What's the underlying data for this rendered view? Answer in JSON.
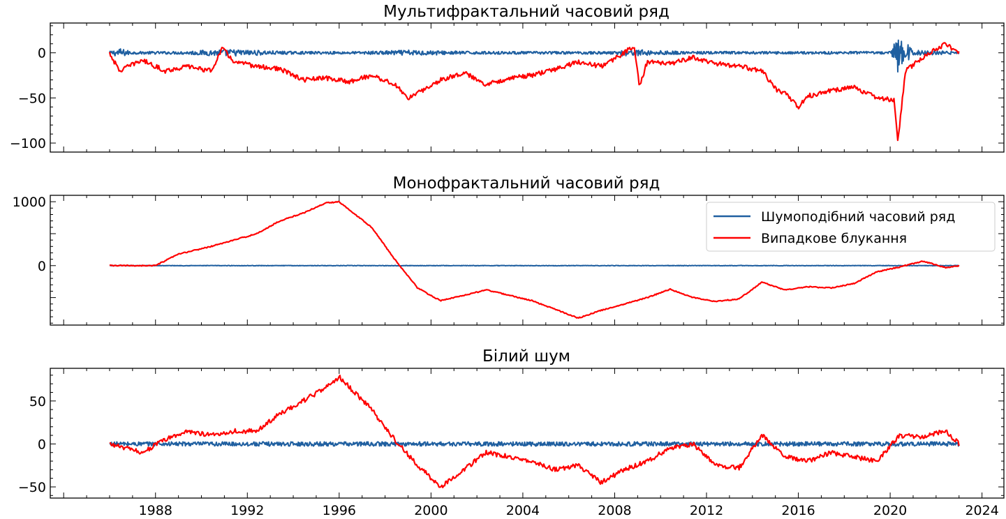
{
  "colors": {
    "noise": "#1f5fa0",
    "walk": "#ff0000",
    "axis": "#000000",
    "background": "#ffffff"
  },
  "legend": {
    "placement": "top-right of middle panel",
    "entries": [
      "Шумоподібний часовий ряд",
      "Випадкове блукання"
    ]
  },
  "chart_data": [
    {
      "type": "line",
      "title": "Мультифрактальний часовий ряд",
      "xlabel": "",
      "ylabel": "",
      "x_type": "date",
      "xlim": [
        "1983-06-01",
        "2024-12-15"
      ],
      "ylim": [
        -110,
        33
      ],
      "y_ticks": [
        0,
        -50,
        -100
      ],
      "y_tick_labels": [
        "0",
        "−50",
        "−100"
      ],
      "x_tick_labels_shown": false,
      "series": [
        {
          "name": "Шумоподібний часовий ряд",
          "style": "noise",
          "x": [
            "1986-01-01",
            "1986-06-01",
            "1987-01-01",
            "1989-01-01",
            "1991-01-01",
            "1994-01-01",
            "1997-01-01",
            "1999-01-01",
            "2002-01-01",
            "2005-01-01",
            "2008-01-01",
            "2008-06-01",
            "2011-01-01",
            "2014-01-01",
            "2017-01-01",
            "2020-01-01",
            "2020-05-01",
            "2021-01-01",
            "2023-01-01"
          ],
          "y": [
            0,
            0,
            0,
            0,
            0,
            0,
            0,
            0,
            0,
            0,
            0,
            0,
            0,
            0,
            0,
            0,
            0,
            0,
            0
          ],
          "amplitude": [
            1.5,
            5,
            1.5,
            1.5,
            4,
            1.5,
            1.5,
            3,
            1.5,
            1.5,
            1.5,
            4,
            1.5,
            1.5,
            1.5,
            1.5,
            22,
            3,
            1.5
          ]
        },
        {
          "name": "Випадкове блукання",
          "style": "walk",
          "x": [
            "1986-01-01",
            "1986-06-01",
            "1987-06-01",
            "1988-06-01",
            "1989-06-01",
            "1990-06-01",
            "1990-12-01",
            "1991-06-01",
            "1992-06-01",
            "1993-06-01",
            "1994-06-01",
            "1995-06-01",
            "1996-06-01",
            "1997-06-01",
            "1998-06-01",
            "1999-01-01",
            "1999-06-01",
            "2000-06-01",
            "2001-06-01",
            "2002-06-01",
            "2003-06-01",
            "2004-06-01",
            "2005-06-01",
            "2006-06-01",
            "2007-06-01",
            "2008-06-01",
            "2008-11-01",
            "2009-02-01",
            "2009-06-01",
            "2010-06-01",
            "2011-06-01",
            "2012-06-01",
            "2013-06-01",
            "2014-06-01",
            "2015-01-01",
            "2015-06-01",
            "2016-01-01",
            "2016-06-01",
            "2017-06-01",
            "2018-06-01",
            "2019-06-01",
            "2020-03-01",
            "2020-05-01",
            "2020-09-01",
            "2021-06-01",
            "2022-06-01",
            "2023-01-01"
          ],
          "y": [
            0,
            -20,
            -8,
            -20,
            -15,
            -20,
            5,
            -10,
            -15,
            -18,
            -30,
            -28,
            -32,
            -25,
            -35,
            -50,
            -45,
            -30,
            -22,
            -35,
            -28,
            -25,
            -18,
            -10,
            -15,
            0,
            8,
            -38,
            -10,
            -12,
            -5,
            -12,
            -15,
            -20,
            -40,
            -45,
            -60,
            -48,
            -42,
            -38,
            -50,
            -52,
            -100,
            -20,
            -5,
            10,
            0
          ]
        }
      ]
    },
    {
      "type": "line",
      "title": "Монофрактальний часовий ряд",
      "xlabel": "",
      "ylabel": "",
      "x_type": "date",
      "xlim": [
        "1983-06-01",
        "2024-12-15"
      ],
      "ylim": [
        -930,
        1100
      ],
      "y_ticks": [
        1000,
        0
      ],
      "y_tick_labels": [
        "1000",
        "0"
      ],
      "x_tick_labels_shown": false,
      "series": [
        {
          "name": "Шумоподібний часовий ряд",
          "style": "noise",
          "x": [
            "1986-01-01",
            "2023-01-01"
          ],
          "y": [
            0,
            0
          ],
          "amplitude": [
            4,
            4
          ]
        },
        {
          "name": "Випадкове блукання",
          "style": "walk",
          "x": [
            "1986-01-01",
            "1987-06-01",
            "1988-01-01",
            "1989-01-01",
            "1990-06-01",
            "1991-06-01",
            "1992-06-01",
            "1993-06-01",
            "1994-06-01",
            "1995-06-01",
            "1996-01-01",
            "1997-06-01",
            "1998-06-01",
            "1999-06-01",
            "2000-06-01",
            "2002-06-01",
            "2004-06-01",
            "2006-06-01",
            "2007-06-01",
            "2009-06-01",
            "2010-06-01",
            "2011-06-01",
            "2012-06-01",
            "2013-06-01",
            "2014-06-01",
            "2015-06-01",
            "2016-06-01",
            "2017-06-01",
            "2018-06-01",
            "2019-06-01",
            "2020-06-01",
            "2021-06-01",
            "2022-06-01",
            "2023-01-01"
          ],
          "y": [
            0,
            0,
            0,
            180,
            300,
            400,
            500,
            700,
            820,
            980,
            1000,
            600,
            100,
            -350,
            -550,
            -380,
            -550,
            -820,
            -700,
            -500,
            -370,
            -500,
            -560,
            -520,
            -260,
            -380,
            -330,
            -350,
            -280,
            -100,
            -20,
            70,
            -30,
            0
          ]
        }
      ]
    },
    {
      "type": "line",
      "title": "Білий шум",
      "xlabel": "",
      "ylabel": "",
      "x_type": "date",
      "xlim": [
        "1983-06-01",
        "2024-12-15"
      ],
      "ylim": [
        -63,
        88
      ],
      "y_ticks": [
        50,
        0,
        -50
      ],
      "y_tick_labels": [
        "50",
        "0",
        "−50"
      ],
      "x_ticks": [
        "1988",
        "1992",
        "1996",
        "2000",
        "2004",
        "2008",
        "2012",
        "2016",
        "2020",
        "2024"
      ],
      "x_tick_labels_shown": true,
      "series": [
        {
          "name": "Шумоподібний часовий ряд",
          "style": "noise",
          "x": [
            "1986-01-01",
            "2023-01-01"
          ],
          "y": [
            0,
            0
          ],
          "amplitude": [
            2.5,
            2.5
          ]
        },
        {
          "name": "Випадкове блукання",
          "style": "walk",
          "x": [
            "1986-01-01",
            "1987-06-01",
            "1988-06-01",
            "1989-06-01",
            "1990-06-01",
            "1991-06-01",
            "1992-06-01",
            "1993-06-01",
            "1994-06-01",
            "1995-06-01",
            "1996-01-01",
            "1997-06-01",
            "1998-06-01",
            "1999-06-01",
            "2000-06-01",
            "2001-06-01",
            "2002-06-01",
            "2003-06-01",
            "2004-06-01",
            "2005-06-01",
            "2006-06-01",
            "2007-06-01",
            "2008-06-01",
            "2009-06-01",
            "2010-06-01",
            "2011-06-01",
            "2012-06-01",
            "2013-06-01",
            "2014-06-01",
            "2015-06-01",
            "2016-06-01",
            "2017-06-01",
            "2018-06-01",
            "2019-06-01",
            "2020-06-01",
            "2021-06-01",
            "2022-06-01",
            "2023-01-01"
          ],
          "y": [
            0,
            -10,
            5,
            15,
            10,
            15,
            15,
            35,
            50,
            65,
            78,
            40,
            5,
            -25,
            -50,
            -30,
            -10,
            -15,
            -20,
            -30,
            -25,
            -45,
            -30,
            -20,
            -5,
            0,
            -25,
            -28,
            10,
            -15,
            -20,
            -10,
            -15,
            -20,
            10,
            8,
            15,
            0
          ]
        }
      ]
    }
  ]
}
